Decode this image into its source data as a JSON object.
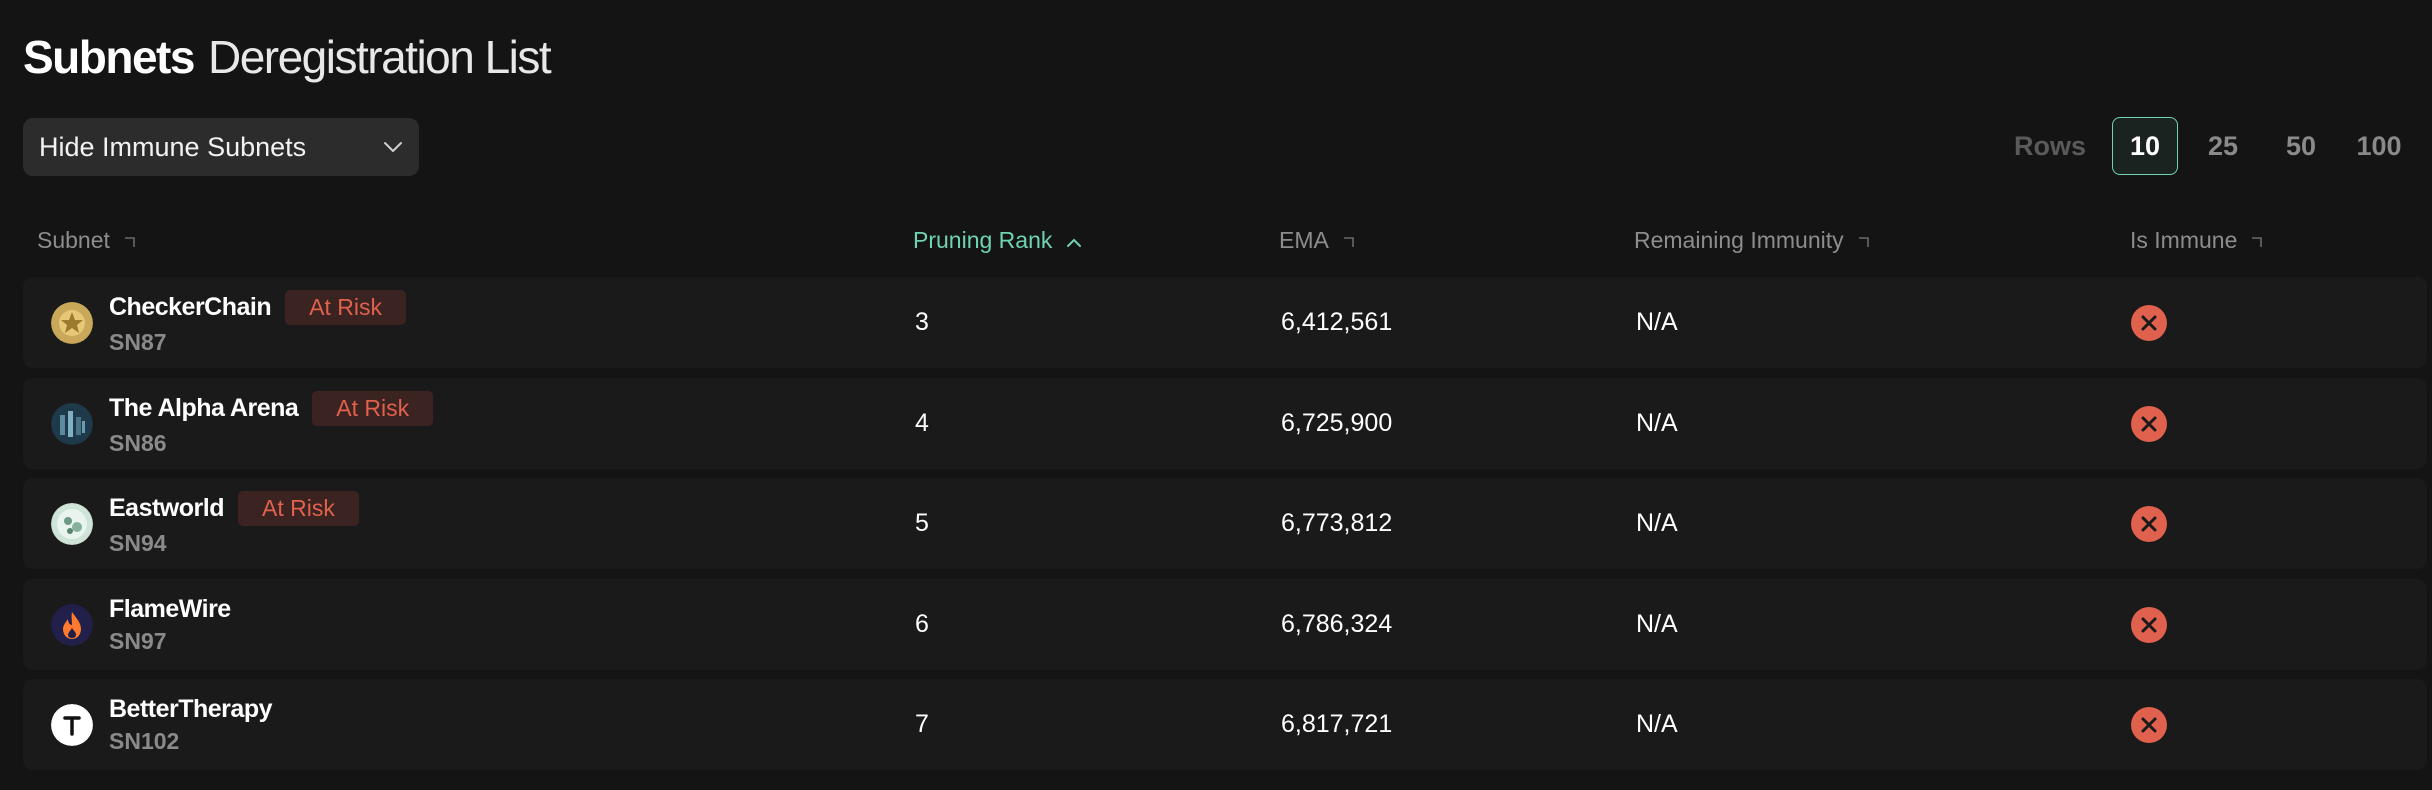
{
  "header": {
    "title_bold": "Subnets",
    "title_light": "Deregistration List"
  },
  "filter": {
    "label": "Hide Immune Subnets"
  },
  "rows_selector": {
    "label": "Rows",
    "options": [
      "10",
      "25",
      "50",
      "100"
    ],
    "selected": "10"
  },
  "table": {
    "columns": [
      "Subnet",
      "Pruning Rank",
      "EMA",
      "Remaining Immunity",
      "Is Immune"
    ],
    "sorted_column": "Pruning Rank",
    "sort_direction": "ascending",
    "rows": [
      {
        "name": "CheckerChain",
        "id": "SN87",
        "badge": "At Risk",
        "rank": "3",
        "ema": "6,412,561",
        "immunity": "N/A",
        "is_immune": false
      },
      {
        "name": "The Alpha Arena",
        "id": "SN86",
        "badge": "At Risk",
        "rank": "4",
        "ema": "6,725,900",
        "immunity": "N/A",
        "is_immune": false
      },
      {
        "name": "Eastworld",
        "id": "SN94",
        "badge": "At Risk",
        "rank": "5",
        "ema": "6,773,812",
        "immunity": "N/A",
        "is_immune": false
      },
      {
        "name": "FlameWire",
        "id": "SN97",
        "badge": "",
        "rank": "6",
        "ema": "6,786,324",
        "immunity": "N/A",
        "is_immune": false
      },
      {
        "name": "BetterTherapy",
        "id": "SN102",
        "badge": "",
        "rank": "7",
        "ema": "6,817,721",
        "immunity": "N/A",
        "is_immune": false
      }
    ]
  },
  "colors": {
    "accent": "#6fd3b3",
    "danger": "#e0614d",
    "background": "#141414",
    "row_background": "#1a1a1a"
  }
}
